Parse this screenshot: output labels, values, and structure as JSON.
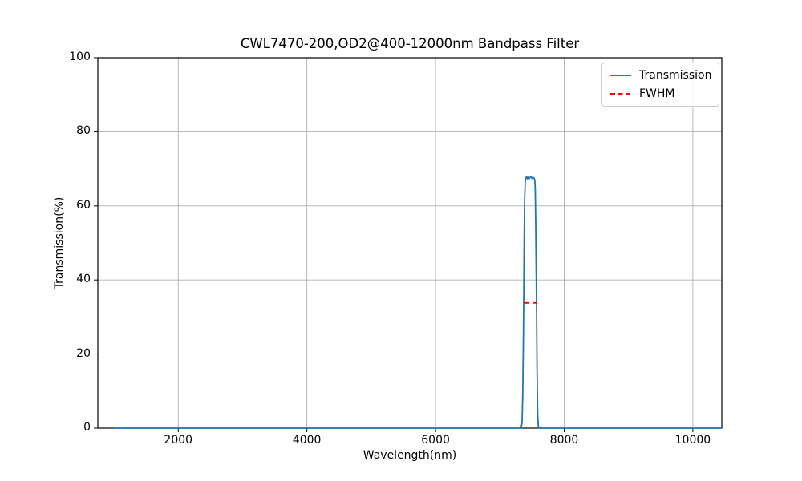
{
  "chart_data": {
    "type": "line",
    "title": "CWL7470-200,OD2@400-12000nm Bandpass Filter",
    "xlabel": "Wavelength(nm)",
    "ylabel": "Transmission(%)",
    "xlim": [
      750,
      10450
    ],
    "ylim": [
      0,
      100
    ],
    "x_ticks": [
      2000,
      4000,
      6000,
      8000,
      10000
    ],
    "y_ticks": [
      0,
      20,
      40,
      60,
      80,
      100
    ],
    "grid": true,
    "grid_color": "#b0b0b0",
    "axis_color": "#000000",
    "background_color": "#ffffff",
    "legend_position": "upper right",
    "series": [
      {
        "name": "Transmission",
        "color": "#1f77b4",
        "style": "solid",
        "points": [
          [
            1000,
            0
          ],
          [
            2000,
            0
          ],
          [
            3000,
            0
          ],
          [
            4000,
            0
          ],
          [
            5000,
            0
          ],
          [
            6000,
            0
          ],
          [
            7000,
            0
          ],
          [
            7330,
            0
          ],
          [
            7345,
            1.5
          ],
          [
            7355,
            9
          ],
          [
            7365,
            24
          ],
          [
            7370,
            33.8
          ],
          [
            7378,
            51
          ],
          [
            7386,
            62
          ],
          [
            7394,
            66.8
          ],
          [
            7405,
            67.6
          ],
          [
            7418,
            67.9
          ],
          [
            7430,
            67.3
          ],
          [
            7445,
            67.8
          ],
          [
            7458,
            67.4
          ],
          [
            7470,
            67.7
          ],
          [
            7485,
            67.9
          ],
          [
            7500,
            67.4
          ],
          [
            7515,
            67.7
          ],
          [
            7530,
            67.5
          ],
          [
            7542,
            67.1
          ],
          [
            7550,
            64.5
          ],
          [
            7558,
            55
          ],
          [
            7566,
            40
          ],
          [
            7570,
            33.8
          ],
          [
            7578,
            17
          ],
          [
            7588,
            4
          ],
          [
            7600,
            0
          ],
          [
            8000,
            0
          ],
          [
            9000,
            0
          ],
          [
            10000,
            0
          ],
          [
            10450,
            0
          ]
        ]
      },
      {
        "name": "FWHM",
        "color": "#ff0000",
        "style": "dashed",
        "points": [
          [
            7370,
            33.8
          ],
          [
            7570,
            33.8
          ]
        ]
      }
    ]
  }
}
